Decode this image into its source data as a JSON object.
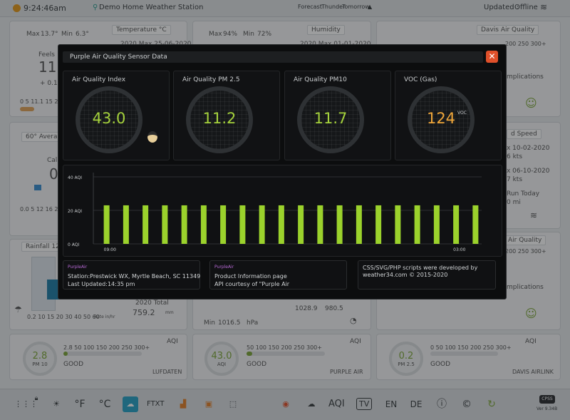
{
  "topbar": {
    "time": "9:24:46am",
    "station": "Demo Home Weather Station",
    "forecast_prefix": "Forecast",
    "forecast_word": "Thunder",
    "forecast_suffix": "Tomorrow",
    "updated_label": "Updated :",
    "updated_status": "Offline"
  },
  "background": {
    "temperature": {
      "title": "Temperature °C",
      "max_label": "Max",
      "max": "13.7°",
      "min_label": "Min",
      "min": "6.3°",
      "feels": "Feels",
      "value": "11.",
      "trend": "+ 0.1",
      "sub": "2020 Max 25-06-2020",
      "scale": "0 5 11.1 15 20"
    },
    "humidity": {
      "title": "Humidity",
      "max_label": "Max",
      "max": "94%",
      "min_label": "Min",
      "min": "72%",
      "sub": "2020 Max 01-01-2020"
    },
    "davis_aq": {
      "title": "Davis Air Quality",
      "scale": "200 250 300+",
      "implications": "mplications"
    },
    "avg_wind": {
      "title": "60° Averag",
      "calm": "Calm",
      "value": "0",
      "scale": "0.0 5 12 16 20"
    },
    "wind_speed": {
      "title": "d Speed",
      "l1": "x 10-02-2020",
      "l2": "6 kts",
      "l3": "x 06-10-2020",
      "l4": "7 kts",
      "l5": "Run",
      "l5b": "Today",
      "l6": "0 mi"
    },
    "rainfall": {
      "title": "Rainfall 12",
      "scale": "0.2 10 15 20 30 40 50 60",
      "rate": "Rate in/hr",
      "total_label": "2020 Total",
      "total": "759.2",
      "total_unit": "mm"
    },
    "barometer": {
      "min_label": "Min",
      "min": "1016.5",
      "unit": "hPa",
      "v1": "1028.9",
      "v2": "980.5"
    },
    "aq_right": {
      "title": "Air Quality",
      "scale": "200 250 300+",
      "implications": "mplications"
    },
    "lufdaten": {
      "title": "AQI",
      "value": "2.8",
      "unit": "PM 10",
      "scale": "2.8 50 100 150 200 250 300+",
      "status": "GOOD",
      "brand": "LUFDATEN",
      "fill": 0.01
    },
    "purpleair": {
      "title": "AQI",
      "value": "43.0",
      "unit": "AQI",
      "scale": "50 100 150 200 250 300+",
      "status": "GOOD",
      "brand": "PURPLE AIR",
      "fill": 0.07
    },
    "davis_airlink": {
      "title": "AQI",
      "value": "0.2",
      "unit": "PM 2.5",
      "scale": "0 50 100 150 200 250 300+",
      "status": "GOOD",
      "brand": "DAVIS AIRLINK",
      "fill": 0.0
    }
  },
  "toolbar": {
    "fahrenheit": "°F",
    "celsius": "°C",
    "ftxt": "FTXT",
    "aqi": "AQI",
    "tv": "TV",
    "en": "EN",
    "de": "DE",
    "version_badge": "CPSS",
    "version": "Ver 9.34B",
    "icons": [
      "grid-icon",
      "lock-icon",
      "sun-icon",
      "cloud-icon",
      "bar-chart-icon",
      "calendar-icon",
      "box-icon",
      "webcam-icon",
      "cloud-outline-icon",
      "info-icon",
      "copyright-icon",
      "refresh-icon"
    ]
  },
  "modal": {
    "title": "Purple Air Quality Sensor Data",
    "close": "✕",
    "gauges": [
      {
        "label": "Air Quality Index",
        "value": "43.0",
        "unit": "",
        "color": "#a5d23c"
      },
      {
        "label": "Air Quality PM 2.5",
        "value": "11.2",
        "unit": "",
        "color": "#a5d23c"
      },
      {
        "label": "Air Quality PM10",
        "value": "11.7",
        "unit": "",
        "color": "#a5d23c"
      },
      {
        "label": "VOC (Gas)",
        "value": "124",
        "unit": "VOC",
        "color": "#f0a73a"
      }
    ],
    "info": {
      "box1_logo": "PurpleAir",
      "box1_line1": "Station:Prestwick WX, Myrtle Beach, SC 11349",
      "box1_line2": "Last Updated:14:35 pm",
      "box2_logo": "PurpleAir",
      "box2_line1": "Product Information page",
      "box2_line2": "API courtesy of \"Purple Air",
      "box3_line1": "CSS/SVG/PHP scripts were developed by",
      "box3_line2": "weather34.com © 2015-2020"
    }
  },
  "chart_data": {
    "type": "bar",
    "title": "",
    "xlabel": "",
    "ylabel": "",
    "ylim": [
      0,
      40
    ],
    "yticks": [
      "0 AQI",
      "20 AQI",
      "40 AQI"
    ],
    "xticks": [
      {
        "index": 0,
        "label": "09:00"
      },
      {
        "index": 18,
        "label": "03:00"
      }
    ],
    "grid": true,
    "color": "#9bd22c",
    "values": [
      23,
      23,
      23,
      23,
      23,
      23,
      23,
      23,
      23,
      23,
      23,
      23,
      23,
      23,
      23,
      23,
      23,
      23,
      23,
      23
    ]
  }
}
